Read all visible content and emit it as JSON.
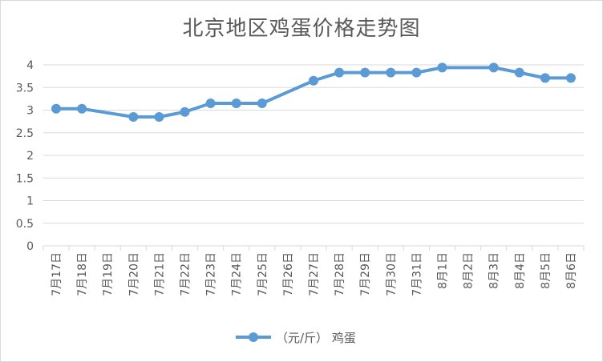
{
  "chart_data": {
    "type": "line",
    "title": "北京地区鸡蛋价格走势图",
    "xlabel": "",
    "ylabel": "",
    "ylim": [
      0,
      4
    ],
    "yticks": [
      "0",
      "0.5",
      "1",
      "1.5",
      "2",
      "2.5",
      "3",
      "3.5",
      "4"
    ],
    "categories": [
      "7月17日",
      "7月18日",
      "7月19日",
      "7月20日",
      "7月21日",
      "7月22日",
      "7月23日",
      "7月24日",
      "7月25日",
      "7月26日",
      "7月27日",
      "7月28日",
      "7月29日",
      "7月30日",
      "7月31日",
      "8月1日",
      "8月2日",
      "8月3日",
      "8月4日",
      "8月5日",
      "8月6日"
    ],
    "series": [
      {
        "name": "（元/斤） 鸡蛋",
        "color": "#5b9bd5",
        "values": [
          3.03,
          3.03,
          null,
          2.85,
          2.85,
          2.96,
          3.15,
          3.15,
          3.15,
          null,
          3.65,
          3.83,
          3.83,
          3.83,
          3.83,
          3.94,
          null,
          3.94,
          3.83,
          3.71,
          3.71
        ]
      }
    ],
    "grid": true,
    "legend": "bottom"
  }
}
